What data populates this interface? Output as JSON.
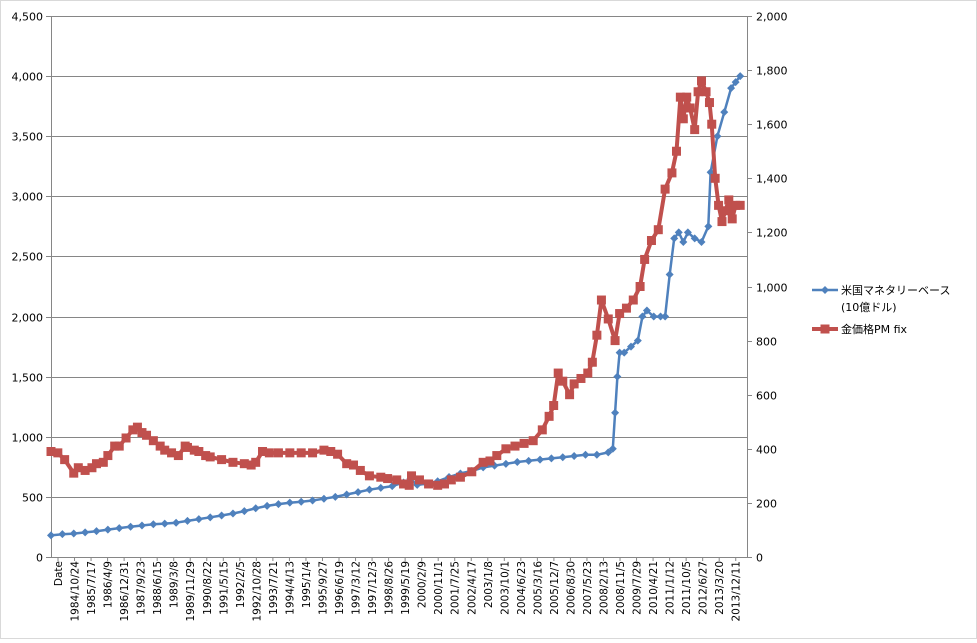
{
  "chart_data": {
    "type": "line",
    "title": "",
    "xlabel": "",
    "ylabel": "",
    "y_left": {
      "range": [
        0,
        4500
      ],
      "ticks": [
        0,
        500,
        1000,
        1500,
        2000,
        2500,
        3000,
        3500,
        4000,
        4500
      ],
      "tick_labels": [
        "0",
        "500",
        "1,000",
        "1,500",
        "2,000",
        "2,500",
        "3,000",
        "3,500",
        "4,000",
        "4,500"
      ]
    },
    "y_right": {
      "range": [
        0,
        2000
      ],
      "ticks": [
        0,
        200,
        400,
        600,
        800,
        1000,
        1200,
        1400,
        1600,
        1800,
        2000
      ],
      "tick_labels": [
        "0",
        "200",
        "400",
        "600",
        "800",
        "1,000",
        "1,200",
        "1,400",
        "1,600",
        "1,800",
        "2,000"
      ]
    },
    "x_range": [
      1984.0,
      2014.6
    ],
    "x_tick_labels": [
      "Date",
      "1984/10/24",
      "1985/7/17",
      "1986/4/9",
      "1986/12/31",
      "1987/9/23",
      "1988/6/15",
      "1989/3/8",
      "1989/11/29",
      "1990/8/22",
      "1991/5/15",
      "1992/2/5",
      "1992/10/28",
      "1993/7/21",
      "1994/4/13",
      "1995/1/4",
      "1995/9/27",
      "1996/6/19",
      "1997/3/12",
      "1997/12/3",
      "1998/8/26",
      "1999/5/19",
      "2000/2/9",
      "2000/11/1",
      "2001/7/25",
      "2002/4/17",
      "2003/1/8",
      "2003/10/1",
      "2004/6/23",
      "2005/3/16",
      "2005/12/7",
      "2006/8/30",
      "2007/5/23",
      "2008/2/13",
      "2008/11/5",
      "2009/7/29",
      "2010/4/21",
      "2011/1/12",
      "2011/10/5",
      "2012/6/27",
      "2013/3/20",
      "2013/12/11"
    ],
    "grid": true,
    "legend_position": "right",
    "series": [
      {
        "name_lines": [
          "米国マネタリーベース",
          "(10億ドル)"
        ],
        "axis": "left",
        "color": "#4f81bd",
        "marker": "diamond",
        "x": [
          1984.0,
          1984.5,
          1985.0,
          1985.5,
          1986.0,
          1986.5,
          1987.0,
          1987.5,
          1988.0,
          1988.5,
          1989.0,
          1989.5,
          1990.0,
          1990.5,
          1991.0,
          1991.5,
          1992.0,
          1992.5,
          1993.0,
          1993.5,
          1994.0,
          1994.5,
          1995.0,
          1995.5,
          1996.0,
          1996.5,
          1997.0,
          1997.5,
          1998.0,
          1998.5,
          1999.0,
          1999.5,
          1999.8,
          2000.1,
          2000.5,
          2001.0,
          2001.5,
          2002.0,
          2002.5,
          2003.0,
          2003.5,
          2004.0,
          2004.5,
          2005.0,
          2005.5,
          2006.0,
          2006.5,
          2007.0,
          2007.5,
          2008.0,
          2008.5,
          2008.7,
          2008.8,
          2008.9,
          2009.0,
          2009.2,
          2009.5,
          2009.8,
          2010.0,
          2010.2,
          2010.5,
          2010.8,
          2011.0,
          2011.2,
          2011.4,
          2011.6,
          2011.8,
          2012.0,
          2012.3,
          2012.6,
          2012.9,
          2013.0,
          2013.3,
          2013.6,
          2013.9,
          2014.1,
          2014.3
        ],
        "values": [
          180,
          190,
          195,
          205,
          215,
          228,
          240,
          252,
          262,
          272,
          278,
          285,
          300,
          315,
          330,
          345,
          362,
          382,
          405,
          425,
          440,
          452,
          460,
          470,
          485,
          500,
          520,
          540,
          560,
          575,
          590,
          620,
          650,
          600,
          610,
          630,
          665,
          695,
          715,
          745,
          760,
          775,
          790,
          800,
          810,
          820,
          830,
          840,
          850,
          850,
          870,
          900,
          1200,
          1500,
          1700,
          1700,
          1750,
          1800,
          2000,
          2050,
          2000,
          2000,
          2000,
          2350,
          2650,
          2700,
          2620,
          2700,
          2650,
          2620,
          2750,
          3200,
          3500,
          3700,
          3900,
          3950,
          4000
        ]
      },
      {
        "name": "金価格PM fix",
        "axis": "right",
        "color": "#c0504d",
        "marker": "square",
        "x": [
          1984.0,
          1984.3,
          1984.6,
          1985.0,
          1985.2,
          1985.5,
          1985.8,
          1986.0,
          1986.3,
          1986.5,
          1986.8,
          1987.0,
          1987.3,
          1987.6,
          1987.8,
          1988.0,
          1988.2,
          1988.5,
          1988.8,
          1989.0,
          1989.3,
          1989.6,
          1989.9,
          1990.0,
          1990.3,
          1990.5,
          1990.8,
          1991.0,
          1991.5,
          1992.0,
          1992.5,
          1992.8,
          1993.0,
          1993.3,
          1993.6,
          1994.0,
          1994.5,
          1995.0,
          1995.5,
          1996.0,
          1996.3,
          1996.6,
          1997.0,
          1997.3,
          1997.6,
          1998.0,
          1998.5,
          1998.8,
          1999.2,
          1999.5,
          1999.75,
          1999.85,
          2000.2,
          2000.6,
          2001.0,
          2001.3,
          2001.6,
          2002.0,
          2002.5,
          2003.0,
          2003.3,
          2003.6,
          2004.0,
          2004.4,
          2004.8,
          2005.2,
          2005.6,
          2005.9,
          2006.1,
          2006.3,
          2006.5,
          2006.8,
          2007.0,
          2007.3,
          2007.6,
          2007.8,
          2008.0,
          2008.2,
          2008.5,
          2008.8,
          2009.0,
          2009.3,
          2009.6,
          2009.9,
          2010.1,
          2010.4,
          2010.7,
          2011.0,
          2011.3,
          2011.5,
          2011.67,
          2011.8,
          2011.95,
          2012.1,
          2012.3,
          2012.45,
          2012.6,
          2012.8,
          2012.95,
          2013.05,
          2013.2,
          2013.35,
          2013.5,
          2013.65,
          2013.8,
          2013.95,
          2014.1,
          2014.3
        ],
        "values": [
          390,
          385,
          360,
          310,
          330,
          320,
          330,
          345,
          350,
          375,
          410,
          410,
          440,
          470,
          480,
          460,
          450,
          430,
          410,
          395,
          385,
          375,
          410,
          405,
          395,
          390,
          375,
          370,
          360,
          350,
          345,
          340,
          350,
          390,
          385,
          385,
          385,
          385,
          385,
          395,
          390,
          380,
          345,
          340,
          320,
          300,
          295,
          290,
          285,
          270,
          265,
          300,
          285,
          270,
          265,
          270,
          285,
          295,
          315,
          350,
          355,
          375,
          400,
          410,
          420,
          430,
          470,
          520,
          560,
          680,
          650,
          600,
          640,
          660,
          680,
          720,
          820,
          950,
          880,
          800,
          900,
          920,
          950,
          1000,
          1100,
          1170,
          1210,
          1360,
          1420,
          1500,
          1700,
          1620,
          1700,
          1660,
          1580,
          1720,
          1760,
          1720,
          1680,
          1600,
          1400,
          1300,
          1240,
          1280,
          1320,
          1250,
          1300,
          1300
        ]
      }
    ]
  }
}
